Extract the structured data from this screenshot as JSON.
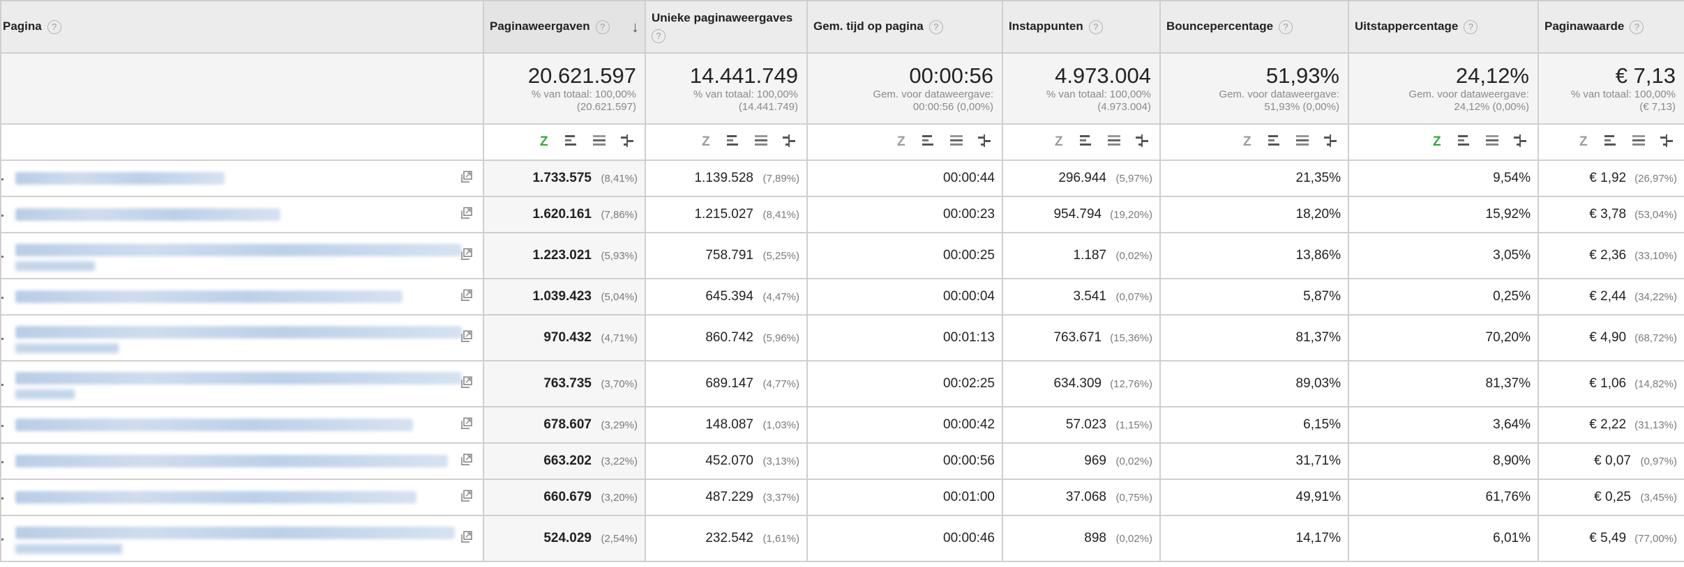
{
  "columns": [
    {
      "label": "Pagina",
      "help": "?"
    },
    {
      "label": "Paginaweergaven",
      "help": "?",
      "sorted": true
    },
    {
      "label": "Unieke paginaweergaves",
      "help": "?"
    },
    {
      "label": "Gem. tijd op pagina",
      "help": "?"
    },
    {
      "label": "Instappunten",
      "help": "?"
    },
    {
      "label": "Bouncepercentage",
      "help": "?"
    },
    {
      "label": "Uitstappercentage",
      "help": "?"
    },
    {
      "label": "Paginawaarde",
      "help": "?"
    }
  ],
  "totals": [
    {
      "value": "20.621.597",
      "sub1": "% van totaal: 100,00%",
      "sub2": "(20.621.597)"
    },
    {
      "value": "14.441.749",
      "sub1": "% van totaal: 100,00%",
      "sub2": "(14.441.749)"
    },
    {
      "value": "00:00:56",
      "sub1": "Gem. voor dataweergave:",
      "sub2": "00:00:56 (0,00%)"
    },
    {
      "value": "4.973.004",
      "sub1": "% van totaal: 100,00%",
      "sub2": "(4.973.004)"
    },
    {
      "value": "51,93%",
      "sub1": "Gem. voor dataweergave:",
      "sub2": "51,93% (0,00%)"
    },
    {
      "value": "24,12%",
      "sub1": "Gem. voor dataweergave:",
      "sub2": "24,12% (0,00%)"
    },
    {
      "value": "€ 7,13",
      "sub1": "% van totaal: 100,00%",
      "sub2": "(€ 7,13)"
    }
  ],
  "rows": [
    {
      "pv": "1.733.575",
      "pv_pct": "(8,41%)",
      "upv": "1.139.528",
      "upv_pct": "(7,89%)",
      "time": "00:00:44",
      "entr": "296.944",
      "entr_pct": "(5,97%)",
      "bounce": "21,35%",
      "exit": "9,54%",
      "value": "€ 1,92",
      "value_pct": "(26,97%)"
    },
    {
      "pv": "1.620.161",
      "pv_pct": "(7,86%)",
      "upv": "1.215.027",
      "upv_pct": "(8,41%)",
      "time": "00:00:23",
      "entr": "954.794",
      "entr_pct": "(19,20%)",
      "bounce": "18,20%",
      "exit": "15,92%",
      "value": "€ 3,78",
      "value_pct": "(53,04%)"
    },
    {
      "pv": "1.223.021",
      "pv_pct": "(5,93%)",
      "upv": "758.791",
      "upv_pct": "(5,25%)",
      "time": "00:00:25",
      "entr": "1.187",
      "entr_pct": "(0,02%)",
      "bounce": "13,86%",
      "exit": "3,05%",
      "value": "€ 2,36",
      "value_pct": "(33,10%)"
    },
    {
      "pv": "1.039.423",
      "pv_pct": "(5,04%)",
      "upv": "645.394",
      "upv_pct": "(4,47%)",
      "time": "00:00:04",
      "entr": "3.541",
      "entr_pct": "(0,07%)",
      "bounce": "5,87%",
      "exit": "0,25%",
      "value": "€ 2,44",
      "value_pct": "(34,22%)"
    },
    {
      "pv": "970.432",
      "pv_pct": "(4,71%)",
      "upv": "860.742",
      "upv_pct": "(5,96%)",
      "time": "00:01:13",
      "entr": "763.671",
      "entr_pct": "(15,36%)",
      "bounce": "81,37%",
      "exit": "70,20%",
      "value": "€ 4,90",
      "value_pct": "(68,72%)"
    },
    {
      "pv": "763.735",
      "pv_pct": "(3,70%)",
      "upv": "689.147",
      "upv_pct": "(4,77%)",
      "time": "00:02:25",
      "entr": "634.309",
      "entr_pct": "(12,76%)",
      "bounce": "89,03%",
      "exit": "81,37%",
      "value": "€ 1,06",
      "value_pct": "(14,82%)"
    },
    {
      "pv": "678.607",
      "pv_pct": "(3,29%)",
      "upv": "148.087",
      "upv_pct": "(1,03%)",
      "time": "00:00:42",
      "entr": "57.023",
      "entr_pct": "(1,15%)",
      "bounce": "6,15%",
      "exit": "3,64%",
      "value": "€ 2,22",
      "value_pct": "(31,13%)"
    },
    {
      "pv": "663.202",
      "pv_pct": "(3,22%)",
      "upv": "452.070",
      "upv_pct": "(3,13%)",
      "time": "00:00:56",
      "entr": "969",
      "entr_pct": "(0,02%)",
      "bounce": "31,71%",
      "exit": "8,90%",
      "value": "€ 0,07",
      "value_pct": "(0,97%)"
    },
    {
      "pv": "660.679",
      "pv_pct": "(3,20%)",
      "upv": "487.229",
      "upv_pct": "(3,37%)",
      "time": "00:01:00",
      "entr": "37.068",
      "entr_pct": "(0,75%)",
      "bounce": "49,91%",
      "exit": "61,76%",
      "value": "€ 0,25",
      "value_pct": "(3,45%)"
    },
    {
      "pv": "524.029",
      "pv_pct": "(2,54%)",
      "upv": "232.542",
      "upv_pct": "(1,61%)",
      "time": "00:00:46",
      "entr": "898",
      "entr_pct": "(0,02%)",
      "bounce": "14,17%",
      "exit": "6,01%",
      "value": "€ 5,49",
      "value_pct": "(77,00%)"
    }
  ],
  "colors": {
    "header_bg": "#ececec",
    "border": "#cfcfcf",
    "link_blur": "#c4d5ea",
    "active_icon": "#33aa33"
  },
  "viz_active": [
    0,
    5
  ]
}
